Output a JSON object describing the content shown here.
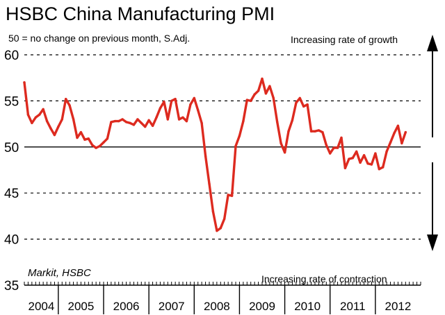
{
  "chart_data": {
    "type": "line",
    "title": "HSBC China Manufacturing PMI",
    "subtitle": "50 = no change on previous month, S.Adj.",
    "source": "Markit, HSBC",
    "annotations": {
      "growth": "Increasing rate of growth",
      "contraction": "Increasing rate of contraction"
    },
    "xlabel": "",
    "ylabel": "",
    "ylim": [
      35,
      60
    ],
    "yticks": [
      60,
      55,
      50,
      45,
      40,
      35
    ],
    "reference_line": 50,
    "year_labels": [
      "2004",
      "2005",
      "2006",
      "2007",
      "2008",
      "2009",
      "2010",
      "2011",
      "2012"
    ],
    "x_start": 2004.25,
    "x_end": 2013.0,
    "series": [
      {
        "name": "HSBC China Manufacturing PMI",
        "color": "#dd2a1f",
        "start": "2004-04",
        "values": [
          57.0,
          53.5,
          52.6,
          53.2,
          53.5,
          54.1,
          52.8,
          52.0,
          51.3,
          52.2,
          53.0,
          55.2,
          54.5,
          53.0,
          51.0,
          51.6,
          50.8,
          50.9,
          50.2,
          49.9,
          50.1,
          50.5,
          50.9,
          52.7,
          52.8,
          52.8,
          53.0,
          52.7,
          52.6,
          52.4,
          53.0,
          52.6,
          52.2,
          52.9,
          52.3,
          53.2,
          54.2,
          54.9,
          53.0,
          55.0,
          55.2,
          53.0,
          53.2,
          52.8,
          54.6,
          55.3,
          54.0,
          52.6,
          49.0,
          46.0,
          43.0,
          40.9,
          41.2,
          42.2,
          44.8,
          44.7,
          50.1,
          51.2,
          52.8,
          55.1,
          55.0,
          55.7,
          56.1,
          57.4,
          55.8,
          56.6,
          55.3,
          52.7,
          50.4,
          49.4,
          51.7,
          52.9,
          54.8,
          55.3,
          54.4,
          54.6,
          51.7,
          51.7,
          51.8,
          51.6,
          50.2,
          49.3,
          49.9,
          49.9,
          51.0,
          47.7,
          48.7,
          48.8,
          49.5,
          48.3,
          49.1,
          48.2,
          48.1,
          49.3,
          47.6,
          47.8,
          49.5,
          50.5,
          51.5,
          52.3,
          50.4,
          51.6
        ]
      }
    ]
  }
}
